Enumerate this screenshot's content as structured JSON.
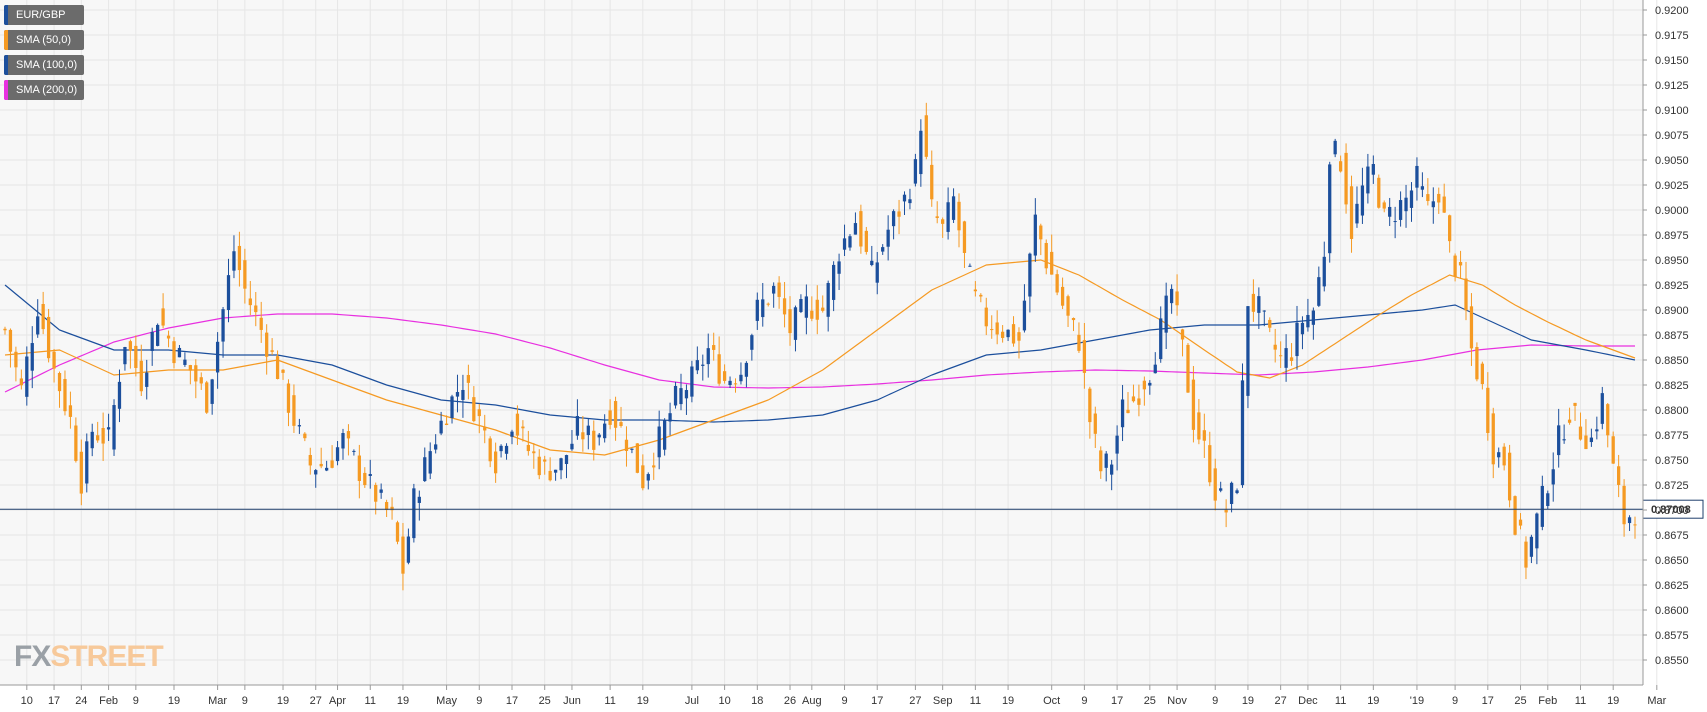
{
  "legend": [
    {
      "label": "EUR/GBP",
      "color": "#1c4f9c"
    },
    {
      "label": "SMA (50,0)",
      "color": "#f59a23"
    },
    {
      "label": "SMA (100,0)",
      "color": "#1c4f9c"
    },
    {
      "label": "SMA (200,0)",
      "color": "#e830e0"
    }
  ],
  "logo": {
    "fx": "FX",
    "street": "STREET"
  },
  "chart_data": {
    "type": "candlestick",
    "series_name": "EUR/GBP",
    "ylim": [
      0.8525,
      0.921
    ],
    "y_ticks": [
      "0.8550",
      "0.8575",
      "0.8600",
      "0.8625",
      "0.8650",
      "0.8675",
      "0.8700",
      "0.8725",
      "0.8750",
      "0.8775",
      "0.8800",
      "0.8825",
      "0.8850",
      "0.8875",
      "0.8900",
      "0.8925",
      "0.8950",
      "0.8975",
      "0.9000",
      "0.9025",
      "0.9050",
      "0.9075",
      "0.9100",
      "0.9125",
      "0.9150",
      "0.9175",
      "0.9200"
    ],
    "x_ticks": [
      {
        "label": "10",
        "idx": 4
      },
      {
        "label": "17",
        "idx": 9
      },
      {
        "label": "24",
        "idx": 14
      },
      {
        "label": "Feb",
        "idx": 19
      },
      {
        "label": "9",
        "idx": 24
      },
      {
        "label": "19",
        "idx": 31
      },
      {
        "label": "Mar",
        "idx": 39
      },
      {
        "label": "9",
        "idx": 44
      },
      {
        "label": "19",
        "idx": 51
      },
      {
        "label": "27",
        "idx": 57
      },
      {
        "label": "Apr",
        "idx": 61
      },
      {
        "label": "11",
        "idx": 67
      },
      {
        "label": "19",
        "idx": 73
      },
      {
        "label": "May",
        "idx": 81
      },
      {
        "label": "9",
        "idx": 87
      },
      {
        "label": "17",
        "idx": 93
      },
      {
        "label": "25",
        "idx": 99
      },
      {
        "label": "Jun",
        "idx": 104
      },
      {
        "label": "11",
        "idx": 111
      },
      {
        "label": "19",
        "idx": 117
      },
      {
        "label": "Jul",
        "idx": 126
      },
      {
        "label": "10",
        "idx": 132
      },
      {
        "label": "18",
        "idx": 138
      },
      {
        "label": "26",
        "idx": 144
      },
      {
        "label": "Aug",
        "idx": 148
      },
      {
        "label": "9",
        "idx": 154
      },
      {
        "label": "17",
        "idx": 160
      },
      {
        "label": "27",
        "idx": 167
      },
      {
        "label": "Sep",
        "idx": 172
      },
      {
        "label": "11",
        "idx": 178
      },
      {
        "label": "19",
        "idx": 184
      },
      {
        "label": "Oct",
        "idx": 192
      },
      {
        "label": "9",
        "idx": 198
      },
      {
        "label": "17",
        "idx": 204
      },
      {
        "label": "25",
        "idx": 210
      },
      {
        "label": "Nov",
        "idx": 215
      },
      {
        "label": "9",
        "idx": 222
      },
      {
        "label": "19",
        "idx": 228
      },
      {
        "label": "27",
        "idx": 234
      },
      {
        "label": "Dec",
        "idx": 239
      },
      {
        "label": "11",
        "idx": 245
      },
      {
        "label": "19",
        "idx": 251
      },
      {
        "label": "'19",
        "idx": 259
      },
      {
        "label": "9",
        "idx": 266
      },
      {
        "label": "17",
        "idx": 272
      },
      {
        "label": "25",
        "idx": 278
      },
      {
        "label": "Feb",
        "idx": 283
      },
      {
        "label": "11",
        "idx": 289
      },
      {
        "label": "19",
        "idx": 295
      },
      {
        "label": "Mar",
        "idx": 303
      }
    ],
    "last_price": 0.87008,
    "last_price_label": "0.87008",
    "colors": {
      "up": "#1c4f9c",
      "down": "#f59a23",
      "sma50": "#f59a23",
      "sma100": "#1c4f9c",
      "sma200": "#e830e0",
      "price_line": "#1e3f6b",
      "grid": "#e6e6e6"
    },
    "close_anchors": [
      [
        0,
        0.888
      ],
      [
        3,
        0.882
      ],
      [
        6,
        0.8905
      ],
      [
        9,
        0.884
      ],
      [
        12,
        0.879
      ],
      [
        14,
        0.873
      ],
      [
        16,
        0.878
      ],
      [
        19,
        0.877
      ],
      [
        22,
        0.887
      ],
      [
        25,
        0.883
      ],
      [
        28,
        0.8895
      ],
      [
        31,
        0.886
      ],
      [
        34,
        0.884
      ],
      [
        37,
        0.881
      ],
      [
        39,
        0.887
      ],
      [
        42,
        0.896
      ],
      [
        44,
        0.892
      ],
      [
        47,
        0.888
      ],
      [
        50,
        0.884
      ],
      [
        53,
        0.879
      ],
      [
        56,
        0.8745
      ],
      [
        59,
        0.8745
      ],
      [
        62,
        0.877
      ],
      [
        65,
        0.874
      ],
      [
        68,
        0.8715
      ],
      [
        71,
        0.869
      ],
      [
        73,
        0.864
      ],
      [
        75,
        0.871
      ],
      [
        78,
        0.876
      ],
      [
        81,
        0.88
      ],
      [
        84,
        0.883
      ],
      [
        87,
        0.879
      ],
      [
        90,
        0.875
      ],
      [
        93,
        0.879
      ],
      [
        96,
        0.876
      ],
      [
        99,
        0.874
      ],
      [
        102,
        0.8745
      ],
      [
        105,
        0.878
      ],
      [
        108,
        0.877
      ],
      [
        111,
        0.88
      ],
      [
        114,
        0.877
      ],
      [
        117,
        0.873
      ],
      [
        120,
        0.877
      ],
      [
        123,
        0.881
      ],
      [
        126,
        0.883
      ],
      [
        129,
        0.886
      ],
      [
        132,
        0.883
      ],
      [
        135,
        0.884
      ],
      [
        138,
        0.89
      ],
      [
        141,
        0.892
      ],
      [
        144,
        0.888
      ],
      [
        147,
        0.8905
      ],
      [
        150,
        0.89
      ],
      [
        153,
        0.896
      ],
      [
        156,
        0.899
      ],
      [
        159,
        0.8935
      ],
      [
        162,
        0.898
      ],
      [
        165,
        0.901
      ],
      [
        167,
        0.904
      ],
      [
        168,
        0.909
      ],
      [
        170,
        0.9
      ],
      [
        172,
        0.898
      ],
      [
        174,
        0.901
      ],
      [
        176,
        0.895
      ],
      [
        178,
        0.891
      ],
      [
        180,
        0.889
      ],
      [
        183,
        0.888
      ],
      [
        186,
        0.887
      ],
      [
        189,
        0.899
      ],
      [
        191,
        0.895
      ],
      [
        193,
        0.892
      ],
      [
        195,
        0.889
      ],
      [
        197,
        0.887
      ],
      [
        199,
        0.879
      ],
      [
        201,
        0.874
      ],
      [
        203,
        0.875
      ],
      [
        205,
        0.88
      ],
      [
        207,
        0.881
      ],
      [
        210,
        0.884
      ],
      [
        212,
        0.888
      ],
      [
        214,
        0.892
      ],
      [
        216,
        0.886
      ],
      [
        218,
        0.879
      ],
      [
        220,
        0.876
      ],
      [
        222,
        0.872
      ],
      [
        224,
        0.87
      ],
      [
        226,
        0.873
      ],
      [
        228,
        0.891
      ],
      [
        230,
        0.89
      ],
      [
        232,
        0.887
      ],
      [
        234,
        0.885
      ],
      [
        236,
        0.886
      ],
      [
        238,
        0.889
      ],
      [
        240,
        0.89
      ],
      [
        242,
        0.896
      ],
      [
        243,
        0.906
      ],
      [
        245,
        0.905
      ],
      [
        247,
        0.898
      ],
      [
        249,
        0.902
      ],
      [
        251,
        0.904
      ],
      [
        253,
        0.899
      ],
      [
        255,
        0.9
      ],
      [
        257,
        0.901
      ],
      [
        259,
        0.903
      ],
      [
        261,
        0.9
      ],
      [
        263,
        0.902
      ],
      [
        265,
        0.896
      ],
      [
        267,
        0.893
      ],
      [
        269,
        0.886
      ],
      [
        271,
        0.882
      ],
      [
        273,
        0.876
      ],
      [
        275,
        0.875
      ],
      [
        277,
        0.869
      ],
      [
        279,
        0.865
      ],
      [
        281,
        0.869
      ],
      [
        283,
        0.873
      ],
      [
        285,
        0.877
      ],
      [
        287,
        0.88
      ],
      [
        289,
        0.878
      ],
      [
        291,
        0.877
      ],
      [
        293,
        0.881
      ],
      [
        295,
        0.874
      ],
      [
        297,
        0.869
      ],
      [
        299,
        0.87
      ]
    ],
    "sma50_anchors": [
      [
        0,
        0.8855
      ],
      [
        10,
        0.886
      ],
      [
        20,
        0.8835
      ],
      [
        30,
        0.884
      ],
      [
        40,
        0.884
      ],
      [
        50,
        0.885
      ],
      [
        60,
        0.883
      ],
      [
        70,
        0.881
      ],
      [
        80,
        0.8795
      ],
      [
        90,
        0.878
      ],
      [
        100,
        0.876
      ],
      [
        110,
        0.8755
      ],
      [
        120,
        0.877
      ],
      [
        130,
        0.879
      ],
      [
        140,
        0.881
      ],
      [
        150,
        0.884
      ],
      [
        160,
        0.888
      ],
      [
        170,
        0.892
      ],
      [
        180,
        0.8945
      ],
      [
        190,
        0.895
      ],
      [
        197,
        0.8935
      ],
      [
        205,
        0.891
      ],
      [
        212,
        0.889
      ],
      [
        220,
        0.886
      ],
      [
        226,
        0.8838
      ],
      [
        232,
        0.8832
      ],
      [
        238,
        0.8845
      ],
      [
        245,
        0.887
      ],
      [
        252,
        0.8895
      ],
      [
        258,
        0.8915
      ],
      [
        265,
        0.8935
      ],
      [
        271,
        0.8925
      ],
      [
        277,
        0.8905
      ],
      [
        283,
        0.8888
      ],
      [
        290,
        0.887
      ],
      [
        296,
        0.8858
      ],
      [
        299,
        0.8852
      ]
    ],
    "sma100_anchors": [
      [
        0,
        0.8925
      ],
      [
        10,
        0.888
      ],
      [
        20,
        0.886
      ],
      [
        30,
        0.886
      ],
      [
        40,
        0.8855
      ],
      [
        50,
        0.8855
      ],
      [
        60,
        0.8845
      ],
      [
        70,
        0.8825
      ],
      [
        80,
        0.881
      ],
      [
        90,
        0.8805
      ],
      [
        100,
        0.8795
      ],
      [
        110,
        0.879
      ],
      [
        120,
        0.879
      ],
      [
        130,
        0.8788
      ],
      [
        140,
        0.879
      ],
      [
        150,
        0.8795
      ],
      [
        160,
        0.881
      ],
      [
        170,
        0.8835
      ],
      [
        180,
        0.8855
      ],
      [
        190,
        0.886
      ],
      [
        200,
        0.887
      ],
      [
        210,
        0.888
      ],
      [
        220,
        0.8885
      ],
      [
        230,
        0.8885
      ],
      [
        240,
        0.889
      ],
      [
        250,
        0.8895
      ],
      [
        260,
        0.89
      ],
      [
        266,
        0.8905
      ],
      [
        272,
        0.889
      ],
      [
        280,
        0.887
      ],
      [
        290,
        0.886
      ],
      [
        299,
        0.885
      ]
    ],
    "sma200_anchors": [
      [
        0,
        0.8818
      ],
      [
        10,
        0.8845
      ],
      [
        20,
        0.8868
      ],
      [
        30,
        0.8882
      ],
      [
        40,
        0.8892
      ],
      [
        50,
        0.8896
      ],
      [
        60,
        0.8896
      ],
      [
        70,
        0.8892
      ],
      [
        80,
        0.8885
      ],
      [
        90,
        0.8876
      ],
      [
        100,
        0.8862
      ],
      [
        110,
        0.8845
      ],
      [
        120,
        0.883
      ],
      [
        130,
        0.8823
      ],
      [
        140,
        0.8822
      ],
      [
        150,
        0.8823
      ],
      [
        160,
        0.8826
      ],
      [
        170,
        0.883
      ],
      [
        180,
        0.8835
      ],
      [
        190,
        0.8838
      ],
      [
        200,
        0.884
      ],
      [
        210,
        0.8839
      ],
      [
        220,
        0.8837
      ],
      [
        230,
        0.8835
      ],
      [
        240,
        0.8838
      ],
      [
        250,
        0.8843
      ],
      [
        260,
        0.885
      ],
      [
        270,
        0.886
      ],
      [
        280,
        0.8865
      ],
      [
        290,
        0.8864
      ],
      [
        299,
        0.8864
      ]
    ],
    "candle_count": 300
  }
}
